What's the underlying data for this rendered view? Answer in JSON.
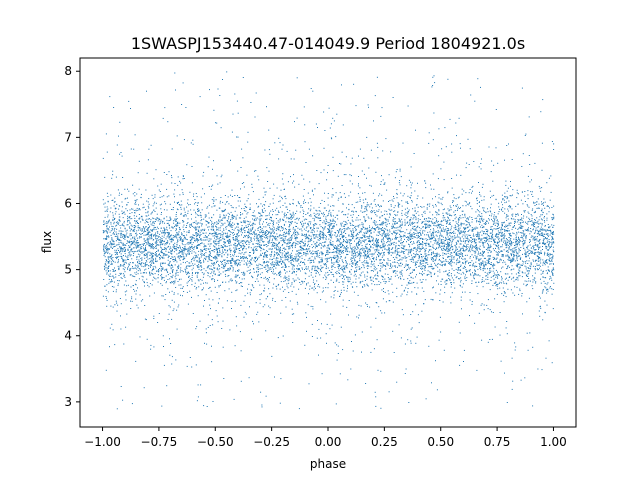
{
  "chart_data": {
    "type": "scatter",
    "title": "1SWASPJ153440.47-014049.9 Period 1804921.0s",
    "xlabel": "phase",
    "ylabel": "flux",
    "xlim": [
      -1.1,
      1.1
    ],
    "ylim": [
      2.62,
      8.2
    ],
    "xticks": [
      -1.0,
      -0.75,
      -0.5,
      -0.25,
      0.0,
      0.25,
      0.5,
      0.75,
      1.0
    ],
    "xtick_labels": [
      "−1.00",
      "−0.75",
      "−0.50",
      "−0.25",
      "0.00",
      "0.25",
      "0.50",
      "0.75",
      "1.00"
    ],
    "yticks": [
      3,
      4,
      5,
      6,
      7,
      8
    ],
    "ytick_labels": [
      "3",
      "4",
      "5",
      "6",
      "7",
      "8"
    ],
    "grid": false,
    "legend": "none",
    "point_color": "#1f77b4",
    "series": [
      {
        "x_range": [
          -1.0,
          1.0
        ],
        "y_core_range": [
          4.9,
          5.9
        ],
        "y_center": 5.4,
        "y_full_range": [
          2.9,
          8.0
        ]
      }
    ]
  }
}
